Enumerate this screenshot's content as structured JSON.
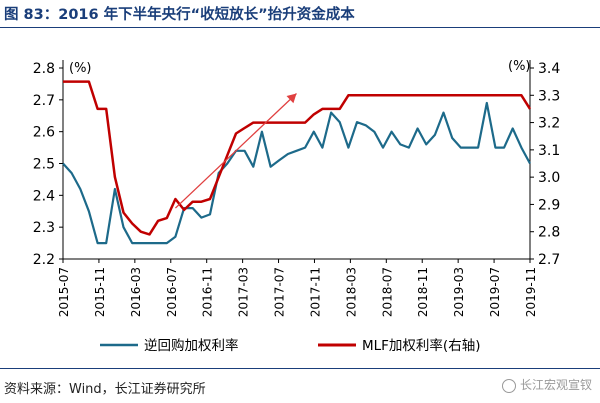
{
  "figure": {
    "title": "图 83：2016 年下半年央行“收短放长”抬升资金成本",
    "source": "资料来源：Wind，长江证券研究所",
    "watermark": "长江宏观宣钗"
  },
  "chart_data": {
    "type": "line",
    "left_axis": {
      "unit": "(%)",
      "ylim": [
        2.2,
        2.8
      ],
      "ticks": [
        "2.2",
        "2.3",
        "2.4",
        "2.5",
        "2.6",
        "2.7",
        "2.8"
      ]
    },
    "right_axis": {
      "unit": "(%)",
      "ylim": [
        2.7,
        3.4
      ],
      "ticks": [
        "2.7",
        "2.8",
        "2.9",
        "3.0",
        "3.1",
        "3.2",
        "3.3",
        "3.4"
      ]
    },
    "x_ticks": [
      "2015-07",
      "2015-11",
      "2016-03",
      "2016-07",
      "2016-11",
      "2017-03",
      "2017-07",
      "2017-11",
      "2018-03",
      "2018-07",
      "2018-11",
      "2019-03",
      "2019-07",
      "2019-11"
    ],
    "series": [
      {
        "name": "逆回购加权利率",
        "axis": "left",
        "color": "#1d6a8a",
        "values": [
          2.5,
          2.47,
          2.42,
          2.35,
          2.25,
          2.25,
          2.42,
          2.3,
          2.25,
          2.25,
          2.25,
          2.25,
          2.25,
          2.27,
          2.36,
          2.36,
          2.33,
          2.34,
          2.47,
          2.5,
          2.54,
          2.54,
          2.49,
          2.6,
          2.49,
          2.51,
          2.53,
          2.54,
          2.55,
          2.6,
          2.55,
          2.66,
          2.63,
          2.55,
          2.63,
          2.62,
          2.6,
          2.55,
          2.6,
          2.56,
          2.55,
          2.61,
          2.56,
          2.59,
          2.66,
          2.58,
          2.55,
          2.55,
          2.55,
          2.69,
          2.55,
          2.55,
          2.61,
          2.55,
          2.5
        ]
      },
      {
        "name": "MLF加权利率(右轴)",
        "axis": "right",
        "color": "#c00000",
        "values": [
          3.35,
          3.35,
          3.35,
          3.35,
          3.25,
          3.25,
          3.0,
          2.87,
          2.83,
          2.8,
          2.79,
          2.84,
          2.85,
          2.92,
          2.88,
          2.91,
          2.91,
          2.92,
          3.0,
          3.08,
          3.16,
          3.18,
          3.2,
          3.2,
          3.2,
          3.2,
          3.2,
          3.2,
          3.2,
          3.23,
          3.25,
          3.25,
          3.25,
          3.3,
          3.3,
          3.3,
          3.3,
          3.3,
          3.3,
          3.3,
          3.3,
          3.3,
          3.3,
          3.3,
          3.3,
          3.3,
          3.3,
          3.3,
          3.3,
          3.3,
          3.3,
          3.3,
          3.3,
          3.3,
          3.25
        ]
      }
    ],
    "annotation": {
      "type": "arrow",
      "description": "upward trend",
      "color": "#e04040",
      "from_index": 13,
      "to_index": 27,
      "from_left_value": 2.36,
      "to_left_value": 2.72
    },
    "grid": false,
    "legend": "bottom"
  }
}
